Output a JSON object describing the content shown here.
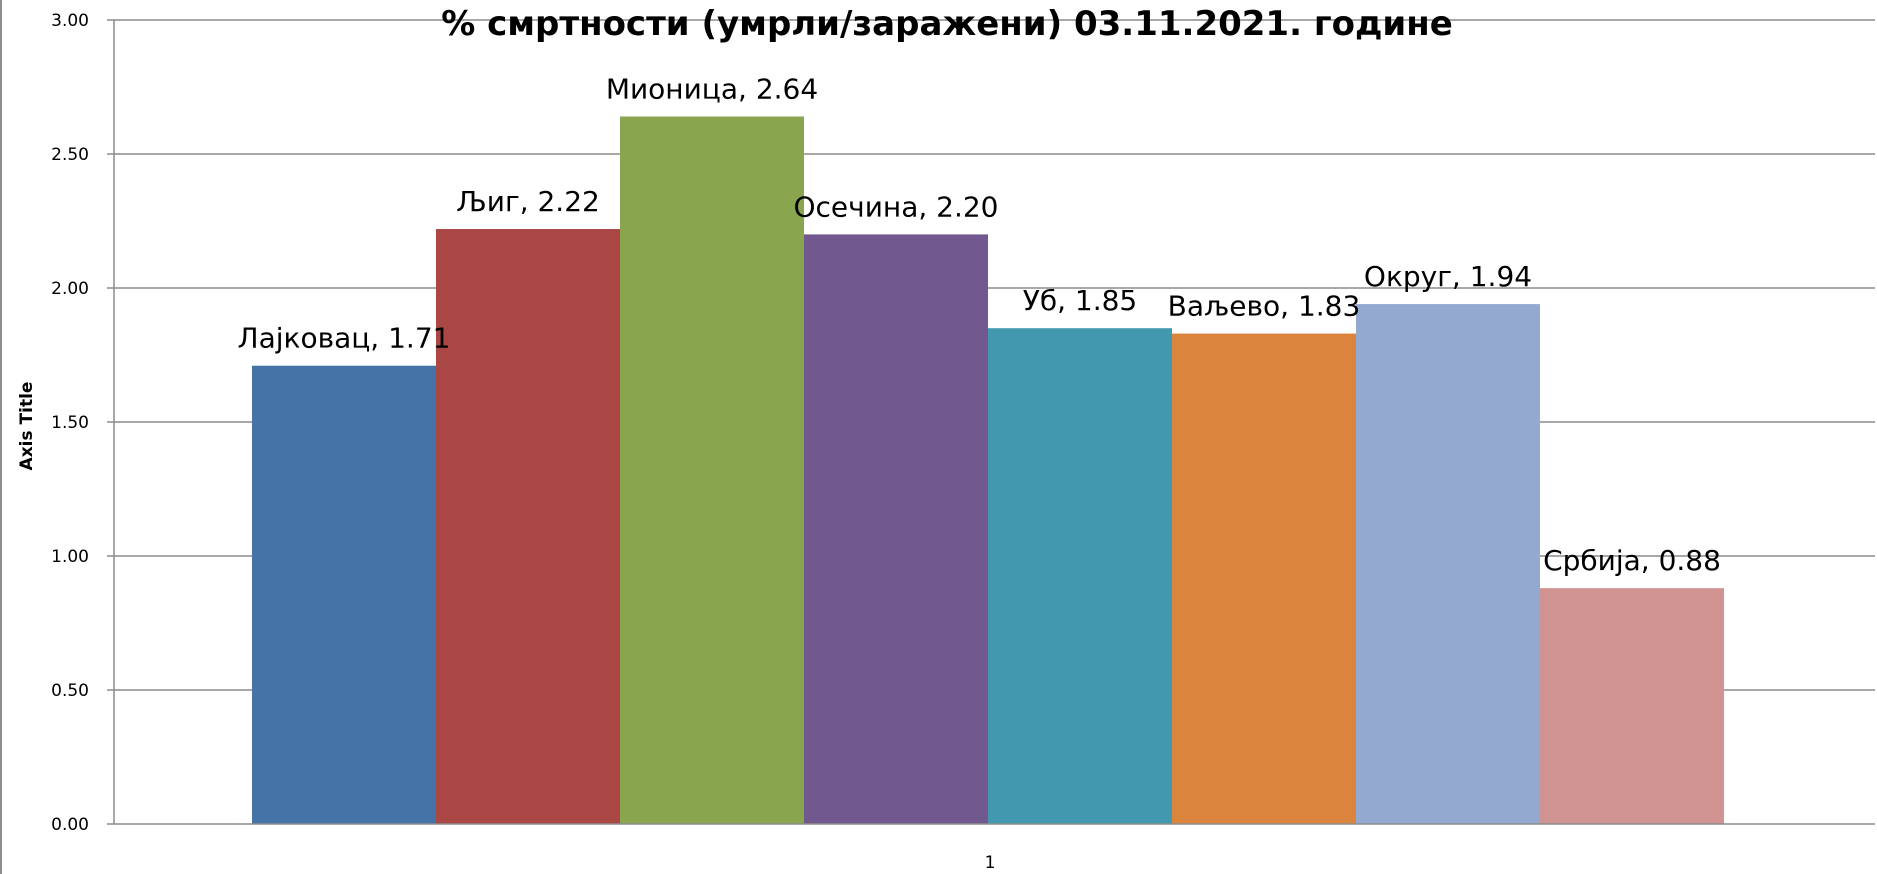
{
  "chart_data": {
    "type": "bar",
    "title": "% смртности (умрли/заражени) 03.11.2021. године",
    "xlabel": "",
    "ylabel": "Axis Title",
    "categories": [
      "1"
    ],
    "ylim": [
      0,
      3
    ],
    "yticks": [
      "0.00",
      "0.50",
      "1.00",
      "1.50",
      "2.00",
      "2.50",
      "3.00"
    ],
    "grid": true,
    "legend": "none",
    "series": [
      {
        "name": "Лајковац",
        "values": [
          1.71
        ],
        "label": "Лајковац, 1.71",
        "color": "#4572a7"
      },
      {
        "name": "Љиг",
        "values": [
          2.22
        ],
        "label": "Љиг, 2.22",
        "color": "#aa4643"
      },
      {
        "name": "Мионица",
        "values": [
          2.64
        ],
        "label": "Мионица, 2.64",
        "color": "#89a54e"
      },
      {
        "name": "Осечина",
        "values": [
          2.2
        ],
        "label": "Осечина, 2.20",
        "color": "#71588f"
      },
      {
        "name": "Уб",
        "values": [
          1.85
        ],
        "label": "Уб, 1.85",
        "color": "#4198af"
      },
      {
        "name": "Ваљево",
        "values": [
          1.83
        ],
        "label": "Ваљево, 1.83",
        "color": "#db843d"
      },
      {
        "name": "Округ",
        "values": [
          1.94
        ],
        "label": "Округ, 1.94",
        "color": "#93a9cf"
      },
      {
        "name": "Србија",
        "values": [
          0.88
        ],
        "label": "Србија, 0.88",
        "color": "#d19392"
      }
    ]
  }
}
